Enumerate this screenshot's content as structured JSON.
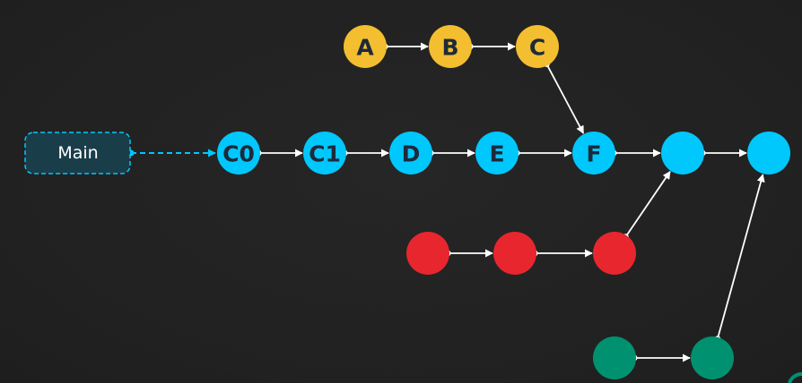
{
  "branch_label": {
    "text": "Main"
  },
  "colors": {
    "background": "#232323",
    "main": "#00c7fc",
    "feature_yellow": "#f3be2f",
    "feature_red": "#e8262e",
    "feature_green": "#009270",
    "label_box": "#1a3d4a",
    "edge": "#ffffff"
  },
  "commits": [
    {
      "id": "a",
      "label": "A",
      "branch": "yellow"
    },
    {
      "id": "b",
      "label": "B",
      "branch": "yellow"
    },
    {
      "id": "c",
      "label": "C",
      "branch": "yellow"
    },
    {
      "id": "c0",
      "label": "C0",
      "branch": "main"
    },
    {
      "id": "c1",
      "label": "C1",
      "branch": "main"
    },
    {
      "id": "d",
      "label": "D",
      "branch": "main"
    },
    {
      "id": "e",
      "label": "E",
      "branch": "main"
    },
    {
      "id": "f",
      "label": "F",
      "branch": "main"
    },
    {
      "id": "m1",
      "label": "",
      "branch": "main"
    },
    {
      "id": "m2",
      "label": "",
      "branch": "main"
    },
    {
      "id": "r1",
      "label": "",
      "branch": "red"
    },
    {
      "id": "r2",
      "label": "",
      "branch": "red"
    },
    {
      "id": "r3",
      "label": "",
      "branch": "red"
    },
    {
      "id": "g1",
      "label": "",
      "branch": "green"
    },
    {
      "id": "g2",
      "label": "",
      "branch": "green"
    }
  ],
  "edges": [
    {
      "from": "a",
      "to": "b"
    },
    {
      "from": "b",
      "to": "c"
    },
    {
      "from": "c",
      "to": "f"
    },
    {
      "from": "c0",
      "to": "c1"
    },
    {
      "from": "c1",
      "to": "d"
    },
    {
      "from": "d",
      "to": "e"
    },
    {
      "from": "e",
      "to": "f"
    },
    {
      "from": "f",
      "to": "m1"
    },
    {
      "from": "m1",
      "to": "m2"
    },
    {
      "from": "r1",
      "to": "r2"
    },
    {
      "from": "r2",
      "to": "r3"
    },
    {
      "from": "r3",
      "to": "m1"
    },
    {
      "from": "g1",
      "to": "g2"
    },
    {
      "from": "g2",
      "to": "m2"
    }
  ],
  "pointer": {
    "from": "main-label",
    "to": "c0",
    "style": "dashed"
  }
}
